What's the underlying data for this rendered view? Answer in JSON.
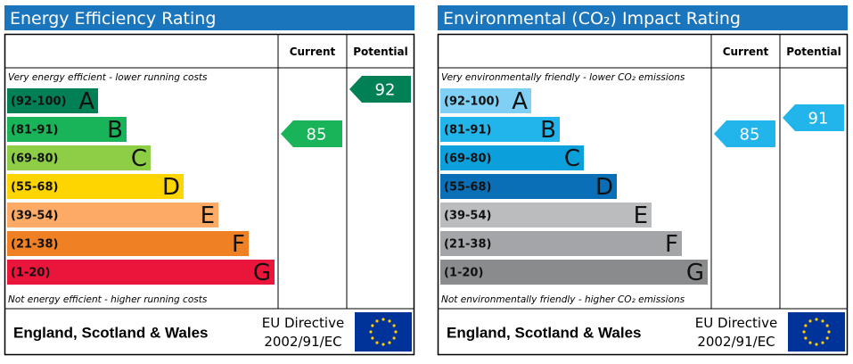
{
  "panels": [
    {
      "title": "Energy Efficiency Rating",
      "columns": [
        "Current",
        "Potential"
      ],
      "top_note": "Very energy efficient - lower running costs",
      "bottom_note": "Not energy efficient - higher running costs",
      "bands": [
        {
          "range": "(92-100)",
          "letter": "A",
          "color": "#008054"
        },
        {
          "range": "(81-91)",
          "letter": "B",
          "color": "#19b459"
        },
        {
          "range": "(69-80)",
          "letter": "C",
          "color": "#8dce46"
        },
        {
          "range": "(55-68)",
          "letter": "D",
          "color": "#ffd500"
        },
        {
          "range": "(39-54)",
          "letter": "E",
          "color": "#fcaa65"
        },
        {
          "range": "(21-38)",
          "letter": "F",
          "color": "#ef8023"
        },
        {
          "range": "(1-20)",
          "letter": "G",
          "color": "#e9153b"
        }
      ],
      "current": 85,
      "potential": 92,
      "footer": {
        "region": "England, Scotland & Wales",
        "directive": [
          "EU Directive",
          "2002/91/EC"
        ]
      }
    },
    {
      "title": "Environmental (CO₂) Impact Rating",
      "columns": [
        "Current",
        "Potential"
      ],
      "top_note": "Very environmentally friendly - lower CO₂ emissions",
      "bottom_note": "Not environmentally friendly - higher CO₂ emissions",
      "bands": [
        {
          "range": "(92-100)",
          "letter": "A",
          "color": "#7fd0f4"
        },
        {
          "range": "(81-91)",
          "letter": "B",
          "color": "#22b5eb"
        },
        {
          "range": "(69-80)",
          "letter": "C",
          "color": "#0b9fdb"
        },
        {
          "range": "(55-68)",
          "letter": "D",
          "color": "#0a6fb6"
        },
        {
          "range": "(39-54)",
          "letter": "E",
          "color": "#bbbcbe"
        },
        {
          "range": "(21-38)",
          "letter": "F",
          "color": "#a3a5a8"
        },
        {
          "range": "(1-20)",
          "letter": "G",
          "color": "#898b8d"
        }
      ],
      "current": 85,
      "potential": 91,
      "footer": {
        "region": "England, Scotland & Wales",
        "directive": [
          "EU Directive",
          "2002/91/EC"
        ]
      }
    }
  ]
}
